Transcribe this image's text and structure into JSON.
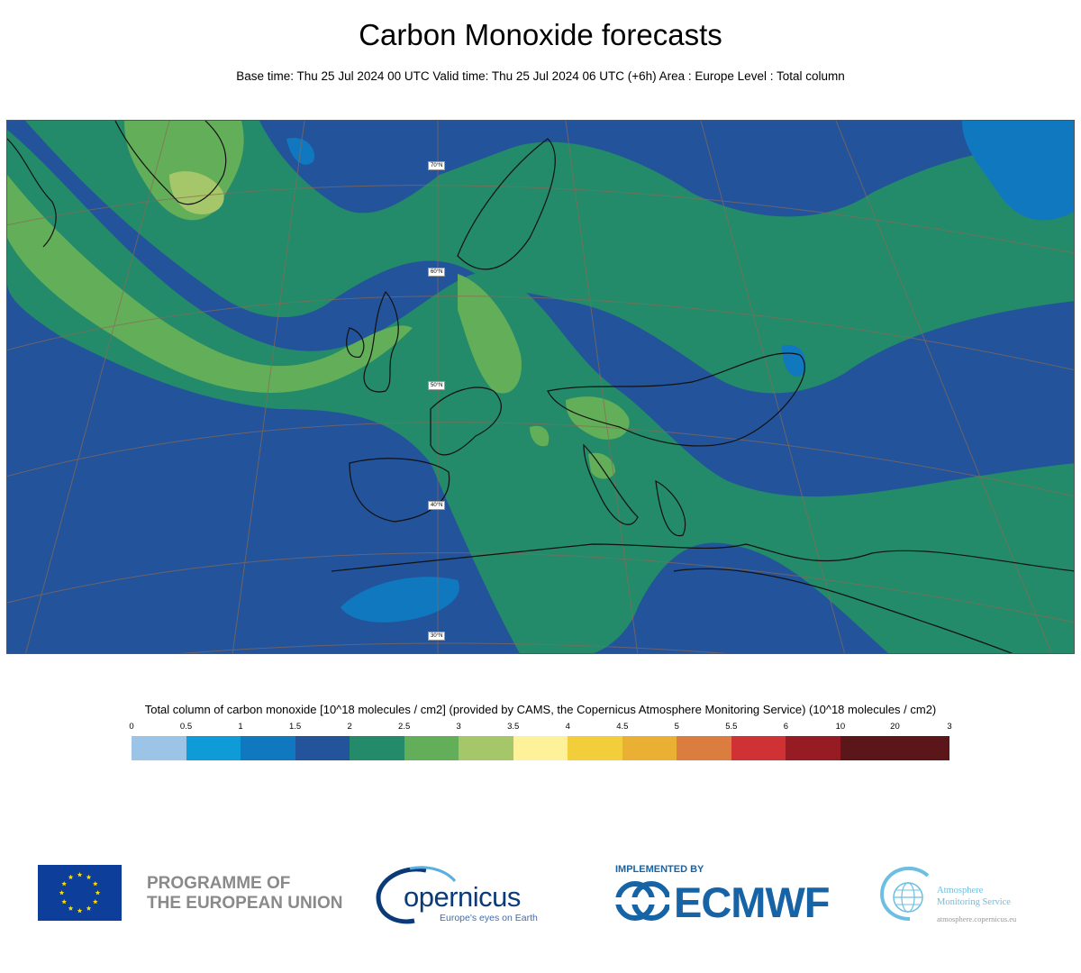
{
  "title": "Carbon Monoxide forecasts",
  "subtitle": "Base time: Thu 25 Jul 2024 00 UTC Valid time: Thu 25 Jul 2024 06 UTC (+6h) Area : Europe Level : Total column",
  "map": {
    "lat_labels": [
      "70°N",
      "60°N",
      "50°N",
      "40°N",
      "30°N"
    ]
  },
  "legend": {
    "title": "Total column of carbon monoxide [10^18 molecules / cm2] (provided by CAMS, the Copernicus Atmosphere Monitoring Service) (10^18 molecules / cm2)",
    "ticks": [
      "0",
      "0.5",
      "1",
      "1.5",
      "2",
      "2.5",
      "3",
      "3.5",
      "4",
      "4.5",
      "5",
      "5.5",
      "6",
      "10",
      "20",
      "3"
    ],
    "colors": [
      "#9bc4e6",
      "#0f9ad8",
      "#0f78bf",
      "#23539a",
      "#238a6a",
      "#63ae58",
      "#a6c66a",
      "#fdf29a",
      "#f2ce3a",
      "#e9b033",
      "#da7d3e",
      "#cf3134",
      "#961b23",
      "#5a1618",
      "#5a1618"
    ]
  },
  "footer": {
    "eu_programme_line1": "PROGRAMME OF",
    "eu_programme_line2": "THE EUROPEAN UNION",
    "copernicus_word": "opernicus",
    "copernicus_tagline": "Europe's eyes on Earth",
    "implemented_by": "IMPLEMENTED BY",
    "ecmwf": "ECMWF",
    "ams_line1": "Atmosphere",
    "ams_line2": "Monitoring Service",
    "ams_url": "atmosphere.copernicus.eu"
  }
}
